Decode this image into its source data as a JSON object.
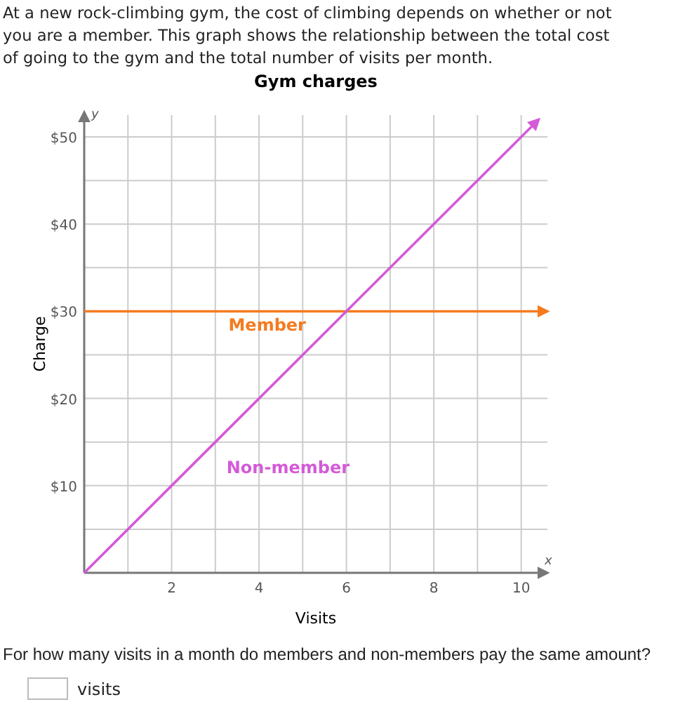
{
  "chart_data": {
    "type": "line",
    "title": "Gym charges",
    "xlabel": "Visits",
    "ylabel": "Charge",
    "annotations": [
      "At a new rock-climbing gym, the cost of climbing depends on whether or not you are a member. This graph shows the relationship between the total cost of going to the gym and the total number of visits per month.",
      "For how many visits in a month do members and non-members pay the same amount?",
      "visits",
      "x",
      "y"
    ],
    "series": [
      {
        "name": "Member",
        "color": "#f47b20",
        "x": [
          0,
          10.6
        ],
        "values": [
          30,
          30
        ]
      },
      {
        "name": "Non-member",
        "color": "#d45ad8",
        "x": [
          0,
          10.4
        ],
        "values": [
          0,
          52
        ]
      }
    ],
    "xlim": [
      0,
      10.6
    ],
    "ylim": [
      0,
      52.5
    ],
    "xticks": [
      {
        "value": 1,
        "label": null
      },
      2,
      {
        "value": 3,
        "label": null
      },
      4,
      {
        "value": 5,
        "label": null
      },
      6,
      {
        "value": 7,
        "label": null
      },
      8,
      {
        "value": 9,
        "label": null
      },
      10
    ],
    "yticks": [
      {
        "value": 5,
        "label": null
      },
      {
        "value": 10,
        "label": "$10"
      },
      {
        "value": 15,
        "label": null
      },
      {
        "value": 20,
        "label": "$20"
      },
      {
        "value": 25,
        "label": null
      },
      {
        "value": 30,
        "label": "$30"
      },
      {
        "value": 35,
        "label": null
      },
      {
        "value": 40,
        "label": "$40"
      },
      {
        "value": 45,
        "label": null
      },
      {
        "value": 50,
        "label": "$50"
      }
    ],
    "grid": true,
    "marker": "none",
    "line_style": "solid"
  }
}
